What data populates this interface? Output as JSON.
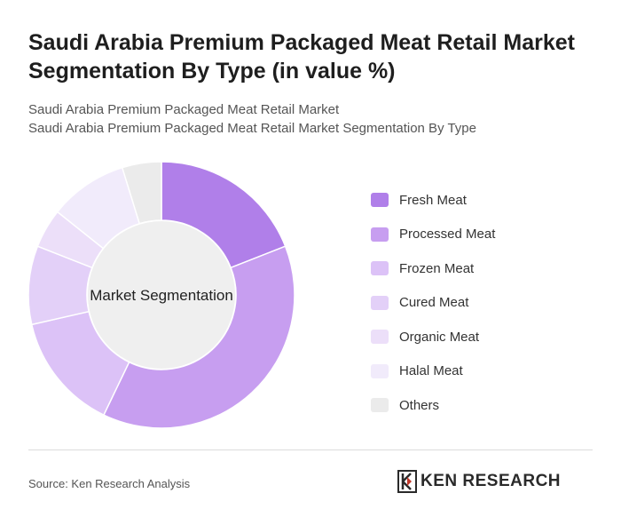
{
  "header": {
    "title": "Saudi Arabia Premium Packaged Meat Retail Market Segmentation By Type (in value %)",
    "subtitle_line1": "Saudi Arabia Premium Packaged Meat Retail Market",
    "subtitle_line2": "Saudi Arabia Premium Packaged Meat Retail Market Segmentation By Type"
  },
  "chart_data": {
    "type": "pie",
    "variant": "donut",
    "center_label": "Market Segmentation",
    "categories": [
      "Fresh Meat",
      "Processed Meat",
      "Frozen Meat",
      "Cured Meat",
      "Organic Meat",
      "Halal Meat",
      "Others"
    ],
    "values": [
      20,
      40,
      15,
      10,
      5,
      10,
      5
    ],
    "colors": [
      "#b07fe9",
      "#c79ef0",
      "#dcc2f7",
      "#e3d0f8",
      "#ecdff9",
      "#f1ebfb",
      "#ebebeb"
    ],
    "legend_position": "right"
  },
  "footer": {
    "source": "Source: Ken Research Analysis",
    "brand": "KEN RESEARCH"
  }
}
